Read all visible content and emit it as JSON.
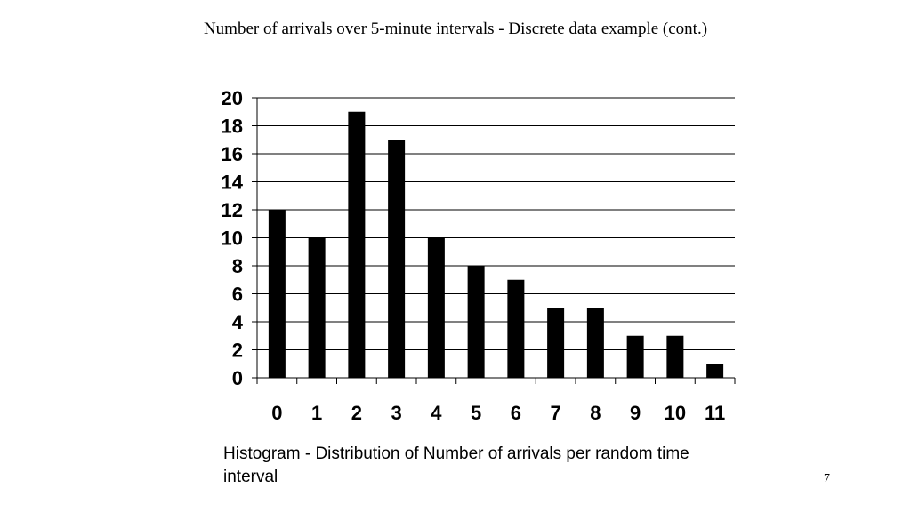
{
  "slide": {
    "title": "Number of arrivals over 5-minute intervals - Discrete data example (cont.)",
    "caption_term": "Histogram",
    "caption_text": " -  Distribution of Number of arrivals per random time interval",
    "page_number": "7"
  },
  "chart_data": {
    "type": "bar",
    "categories": [
      "0",
      "1",
      "2",
      "3",
      "4",
      "5",
      "6",
      "7",
      "8",
      "9",
      "10",
      "11"
    ],
    "values": [
      12,
      10,
      19,
      17,
      10,
      8,
      7,
      5,
      5,
      3,
      3,
      1
    ],
    "title": "",
    "xlabel": "",
    "ylabel": "",
    "ylim": [
      0,
      20
    ],
    "yticks": [
      0,
      2,
      4,
      6,
      8,
      10,
      12,
      14,
      16,
      18,
      20
    ],
    "grid": true,
    "legend": "none",
    "bar_color": "#000000"
  }
}
